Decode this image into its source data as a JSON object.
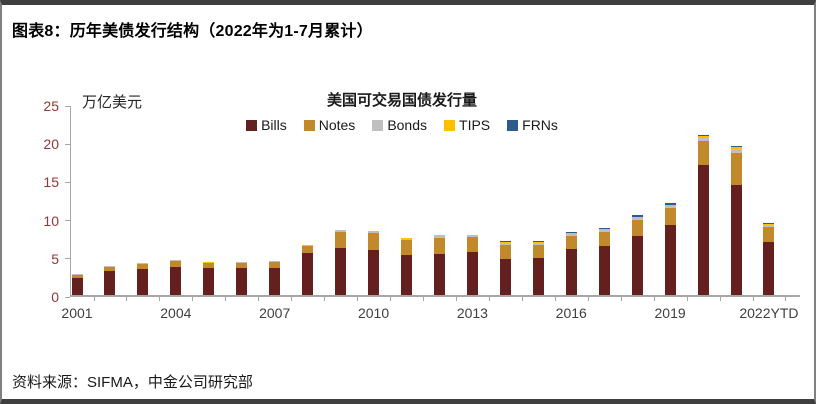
{
  "frame": {
    "title": "图表8：历年美债发行结构（2022年为1-7月累计）",
    "source": "资料来源：SIFMA，中金公司研究部"
  },
  "chart_data": {
    "type": "bar",
    "stacked": true,
    "title": "美国可交易国债发行量",
    "unit_label": "万亿美元",
    "categories": [
      "2001",
      "2002",
      "2003",
      "2004",
      "2005",
      "2006",
      "2007",
      "2008",
      "2009",
      "2010",
      "2011",
      "2012",
      "2013",
      "2014",
      "2015",
      "2016",
      "2017",
      "2018",
      "2019",
      "2020",
      "2021",
      "2022YTD"
    ],
    "x_tick_labels": [
      "2001",
      "2004",
      "2007",
      "2010",
      "2013",
      "2016",
      "2019",
      "2022YTD"
    ],
    "x_label_every": 3,
    "y_ticks": [
      0,
      5,
      10,
      15,
      20,
      25
    ],
    "ylim": [
      0,
      25
    ],
    "grid": false,
    "legend_position": "top-center",
    "series": [
      {
        "name": "Bills",
        "color": "#64201F",
        "values": [
          2.2,
          3.1,
          3.4,
          3.7,
          3.5,
          3.5,
          3.6,
          5.5,
          6.2,
          5.9,
          5.2,
          5.4,
          5.6,
          4.7,
          4.8,
          6.0,
          6.4,
          7.7,
          9.1,
          17.0,
          14.4,
          7.0
        ]
      },
      {
        "name": "Notes",
        "color": "#C1882C",
        "values": [
          0.45,
          0.6,
          0.7,
          0.8,
          0.7,
          0.75,
          0.75,
          0.9,
          2.1,
          2.2,
          2.0,
          2.1,
          1.95,
          1.85,
          1.8,
          1.75,
          1.85,
          2.1,
          2.3,
          3.2,
          4.2,
          1.85
        ]
      },
      {
        "name": "Bonds",
        "color": "#BFBFBF",
        "values": [
          0.05,
          0.05,
          0.05,
          0.05,
          0.04,
          0.04,
          0.04,
          0.06,
          0.15,
          0.2,
          0.2,
          0.2,
          0.2,
          0.2,
          0.22,
          0.25,
          0.25,
          0.3,
          0.3,
          0.4,
          0.55,
          0.3
        ]
      },
      {
        "name": "TIPS",
        "color": "#FFC000",
        "values": [
          0.05,
          0.06,
          0.07,
          0.08,
          0.08,
          0.08,
          0.08,
          0.1,
          0.1,
          0.1,
          0.12,
          0.15,
          0.15,
          0.15,
          0.14,
          0.13,
          0.13,
          0.14,
          0.14,
          0.2,
          0.2,
          0.12
        ]
      },
      {
        "name": "FRNs",
        "color": "#2E5C8A",
        "values": [
          0,
          0,
          0,
          0,
          0,
          0,
          0,
          0,
          0,
          0,
          0,
          0,
          0,
          0.15,
          0.14,
          0.16,
          0.16,
          0.18,
          0.16,
          0.2,
          0.15,
          0.1
        ]
      }
    ],
    "style": {
      "y_tick_label_color": "#953735",
      "x_tick_label_color": "#3F3F3F",
      "axis_color": "#A6A6A6"
    }
  }
}
